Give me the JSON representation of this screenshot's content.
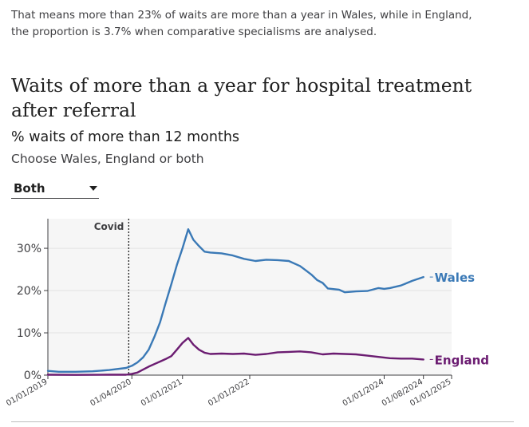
{
  "intro_text": "That means more than 23% of waits are more than a year in Wales, while in England, the proportion is 3.7% when comparative specialisms are analysed.",
  "title": "Waits of more than a year for hospital treatment after referral",
  "subtitle": "% waits of more than 12 months",
  "instruction": "Choose Wales, England or both",
  "selector": {
    "value": "Both",
    "icon": "chevron-down-icon"
  },
  "colors": {
    "wales": "#3a79b6",
    "england": "#6b1c71",
    "grid": "#e3e3e3",
    "plot_bg": "#f6f6f6"
  },
  "chart_data": {
    "type": "line",
    "title": "Waits of more than a year for hospital treatment after referral",
    "ylabel": "% waits of more than 12 months",
    "ylim": [
      0,
      37
    ],
    "xlim": [
      "2019-01-01",
      "2025-01-01"
    ],
    "y_ticks": [
      {
        "value": 0,
        "label": "0%"
      },
      {
        "value": 10,
        "label": "10%"
      },
      {
        "value": 20,
        "label": "20%"
      },
      {
        "value": 30,
        "label": "30%"
      }
    ],
    "x_ticks": [
      {
        "date": "2019-01-01",
        "label": "01/01/2019"
      },
      {
        "date": "2020-04-01",
        "label": "01/04/2020"
      },
      {
        "date": "2021-01-01",
        "label": "01/01/2021"
      },
      {
        "date": "2022-01-01",
        "label": "01/01/2022"
      },
      {
        "date": "2024-01-01",
        "label": "01/01/2024"
      },
      {
        "date": "2024-08-01",
        "label": "01/08/2024"
      },
      {
        "date": "2025-01-01",
        "label": "01/01/2025"
      }
    ],
    "grid": true,
    "annotations": [
      {
        "date": "2020-03-15",
        "label": "Covid"
      }
    ],
    "series": [
      {
        "name": "Wales",
        "points": [
          [
            "2019-01-01",
            1.0
          ],
          [
            "2019-03-01",
            0.8
          ],
          [
            "2019-06-01",
            0.8
          ],
          [
            "2019-09-01",
            0.9
          ],
          [
            "2019-12-01",
            1.2
          ],
          [
            "2020-03-01",
            1.7
          ],
          [
            "2020-04-01",
            2.2
          ],
          [
            "2020-05-01",
            3.0
          ],
          [
            "2020-06-01",
            4.2
          ],
          [
            "2020-07-01",
            6.0
          ],
          [
            "2020-08-01",
            9.0
          ],
          [
            "2020-09-01",
            12.5
          ],
          [
            "2020-10-01",
            17.0
          ],
          [
            "2020-11-01",
            21.5
          ],
          [
            "2020-12-01",
            26.0
          ],
          [
            "2021-01-01",
            30.0
          ],
          [
            "2021-02-01",
            34.5
          ],
          [
            "2021-03-01",
            32.0
          ],
          [
            "2021-04-01",
            30.5
          ],
          [
            "2021-05-01",
            29.2
          ],
          [
            "2021-06-01",
            29.0
          ],
          [
            "2021-08-01",
            28.8
          ],
          [
            "2021-10-01",
            28.3
          ],
          [
            "2021-12-01",
            27.5
          ],
          [
            "2022-02-01",
            27.0
          ],
          [
            "2022-04-01",
            27.3
          ],
          [
            "2022-06-01",
            27.2
          ],
          [
            "2022-08-01",
            27.0
          ],
          [
            "2022-10-01",
            25.8
          ],
          [
            "2022-12-01",
            23.8
          ],
          [
            "2023-01-01",
            22.5
          ],
          [
            "2023-02-01",
            21.8
          ],
          [
            "2023-03-01",
            20.5
          ],
          [
            "2023-05-01",
            20.2
          ],
          [
            "2023-06-01",
            19.6
          ],
          [
            "2023-08-01",
            19.8
          ],
          [
            "2023-10-01",
            19.9
          ],
          [
            "2023-12-01",
            20.6
          ],
          [
            "2024-01-01",
            20.4
          ],
          [
            "2024-02-01",
            20.6
          ],
          [
            "2024-04-01",
            21.2
          ],
          [
            "2024-06-01",
            22.3
          ],
          [
            "2024-08-01",
            23.2
          ]
        ]
      },
      {
        "name": "England",
        "points": [
          [
            "2019-01-01",
            0.1
          ],
          [
            "2019-06-01",
            0.05
          ],
          [
            "2019-12-01",
            0.1
          ],
          [
            "2020-03-01",
            0.1
          ],
          [
            "2020-04-01",
            0.3
          ],
          [
            "2020-05-01",
            0.6
          ],
          [
            "2020-06-01",
            1.3
          ],
          [
            "2020-07-01",
            2.0
          ],
          [
            "2020-08-01",
            2.6
          ],
          [
            "2020-09-01",
            3.2
          ],
          [
            "2020-10-01",
            3.8
          ],
          [
            "2020-11-01",
            4.5
          ],
          [
            "2020-12-01",
            6.0
          ],
          [
            "2021-01-01",
            7.6
          ],
          [
            "2021-02-01",
            8.8
          ],
          [
            "2021-03-01",
            7.2
          ],
          [
            "2021-04-01",
            6.0
          ],
          [
            "2021-05-01",
            5.3
          ],
          [
            "2021-06-01",
            5.0
          ],
          [
            "2021-08-01",
            5.1
          ],
          [
            "2021-10-01",
            5.0
          ],
          [
            "2021-12-01",
            5.1
          ],
          [
            "2022-02-01",
            4.8
          ],
          [
            "2022-04-01",
            5.0
          ],
          [
            "2022-06-01",
            5.4
          ],
          [
            "2022-08-01",
            5.5
          ],
          [
            "2022-10-01",
            5.6
          ],
          [
            "2022-12-01",
            5.4
          ],
          [
            "2023-02-01",
            4.9
          ],
          [
            "2023-04-01",
            5.1
          ],
          [
            "2023-06-01",
            5.0
          ],
          [
            "2023-08-01",
            4.9
          ],
          [
            "2023-10-01",
            4.6
          ],
          [
            "2023-12-01",
            4.3
          ],
          [
            "2024-02-01",
            4.0
          ],
          [
            "2024-04-01",
            3.9
          ],
          [
            "2024-06-01",
            3.9
          ],
          [
            "2024-08-01",
            3.7
          ]
        ]
      }
    ]
  }
}
